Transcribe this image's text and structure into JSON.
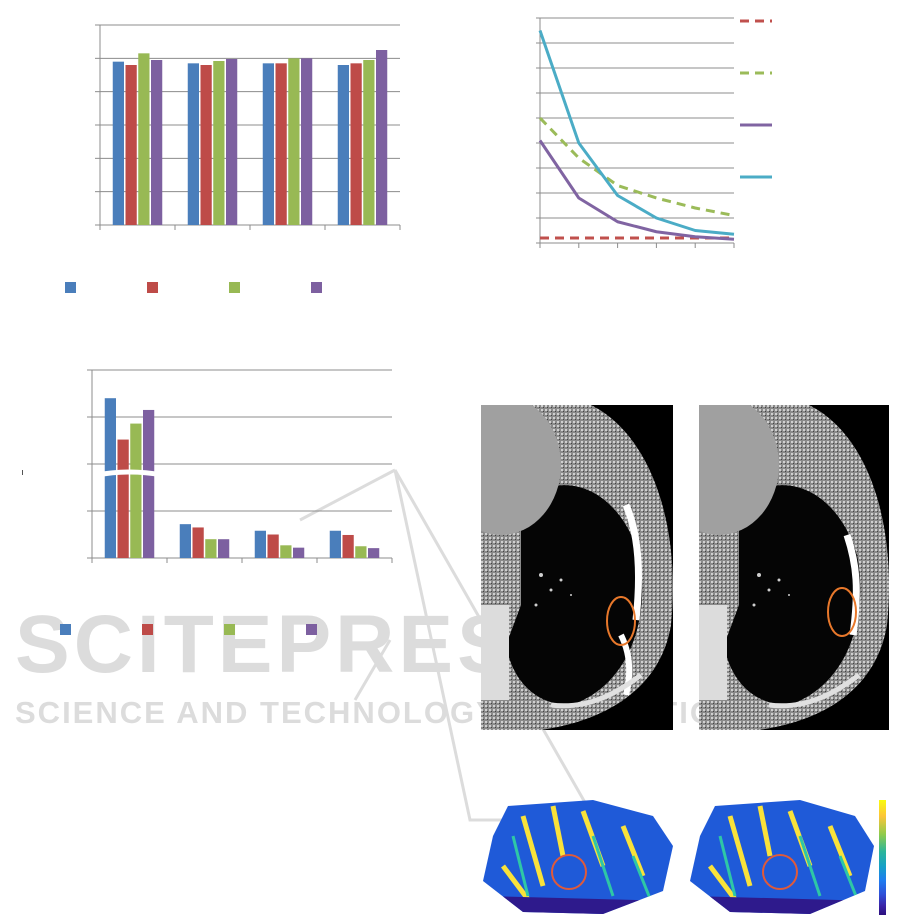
{
  "bar_colors": [
    "#4a7ebb",
    "#be4b48",
    "#98b954",
    "#7d60a0"
  ],
  "line_colors": {
    "red_dash": "#c0504d",
    "green_dash": "#9bbb59",
    "purple": "#8064a2",
    "cyan": "#4bacc6"
  },
  "watermark": {
    "title": "SCITEPRESS",
    "subtitle": "SCIENCE AND TECHNOLOGY PUBLICATIONS",
    "color": "#d9d9d9"
  },
  "ct_images": [
    {
      "annotation": "orange-ellipse",
      "annotation_color": "#e8782b"
    },
    {
      "annotation": "orange-ellipse",
      "annotation_color": "#e8782b"
    }
  ],
  "heatmaps": [
    {
      "annotation": "red-circle",
      "annotation_color": "#e05a3a"
    },
    {
      "annotation": "red-circle",
      "annotation_color": "#e05a3a"
    }
  ],
  "colorbar": {
    "colormap": "parula"
  },
  "chart_data": [
    {
      "type": "bar",
      "ylim": [
        0,
        6
      ],
      "grid": true,
      "legend": "bottom",
      "series": [
        {
          "values": [
            4.9,
            4.85,
            4.85,
            4.8
          ]
        },
        {
          "values": [
            4.8,
            4.8,
            4.85,
            4.85
          ]
        },
        {
          "values": [
            5.15,
            4.92,
            5.0,
            4.95
          ]
        },
        {
          "values": [
            4.95,
            4.98,
            5.0,
            5.25
          ]
        }
      ]
    },
    {
      "type": "bar",
      "ylim": [
        0,
        4
      ],
      "grid": true,
      "axis_break": true,
      "legend": "bottom",
      "series": [
        {
          "values": [
            3.4,
            0.72,
            0.58,
            0.58
          ]
        },
        {
          "values": [
            2.52,
            0.65,
            0.5,
            0.49
          ]
        },
        {
          "values": [
            2.86,
            0.4,
            0.27,
            0.25
          ]
        },
        {
          "values": [
            3.15,
            0.4,
            0.22,
            0.21
          ]
        }
      ]
    },
    {
      "type": "line",
      "x": [
        0,
        1,
        2,
        3,
        4,
        5
      ],
      "ylim": [
        0,
        9
      ],
      "grid": true,
      "legend": "right",
      "series": [
        {
          "style": "dashed",
          "color": "#c0504d",
          "values": [
            0.2,
            0.2,
            0.2,
            0.2,
            0.2,
            0.2
          ]
        },
        {
          "style": "dashed",
          "color": "#9bbb59",
          "values": [
            5.0,
            3.4,
            2.3,
            1.8,
            1.4,
            1.1
          ]
        },
        {
          "style": "solid",
          "color": "#8064a2",
          "values": [
            4.1,
            1.8,
            0.85,
            0.45,
            0.25,
            0.15
          ]
        },
        {
          "style": "solid",
          "color": "#4bacc6",
          "values": [
            8.5,
            4.0,
            1.9,
            1.0,
            0.5,
            0.35
          ]
        }
      ]
    }
  ]
}
